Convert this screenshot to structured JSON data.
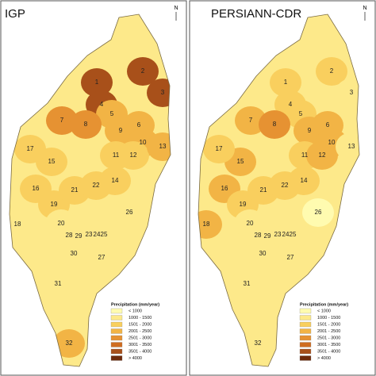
{
  "panels": [
    {
      "title": "IGP",
      "north": "N",
      "regions": [
        {
          "label": "1",
          "color": "#a8501a"
        },
        {
          "label": "2",
          "color": "#a8501a"
        },
        {
          "label": "3",
          "color": "#a8501a"
        },
        {
          "label": "4",
          "color": "#a8501a"
        },
        {
          "label": "5",
          "color": "#f2b445"
        },
        {
          "label": "6",
          "color": "#f2b445"
        },
        {
          "label": "7",
          "color": "#e69232"
        },
        {
          "label": "8",
          "color": "#e69232"
        },
        {
          "label": "9",
          "color": "#f2b445"
        },
        {
          "label": "10",
          "color": "#f2b445"
        },
        {
          "label": "11",
          "color": "#f9cf5e"
        },
        {
          "label": "12",
          "color": "#f9cf5e"
        },
        {
          "label": "13",
          "color": "#f2b445"
        },
        {
          "label": "14",
          "color": "#f9cf5e"
        },
        {
          "label": "15",
          "color": "#f9cf5e"
        },
        {
          "label": "16",
          "color": "#f9cf5e"
        },
        {
          "label": "17",
          "color": "#f9cf5e"
        },
        {
          "label": "18",
          "color": "#fde98a"
        },
        {
          "label": "19",
          "color": "#f9cf5e"
        },
        {
          "label": "20",
          "color": "#fde98a"
        },
        {
          "label": "21",
          "color": "#f9cf5e"
        },
        {
          "label": "22",
          "color": "#f9cf5e"
        },
        {
          "label": "23",
          "color": "#fde98a"
        },
        {
          "label": "24",
          "color": "#fde98a"
        },
        {
          "label": "25",
          "color": "#fde98a"
        },
        {
          "label": "26",
          "color": "#fde98a"
        },
        {
          "label": "27",
          "color": "#fde98a"
        },
        {
          "label": "28",
          "color": "#fde98a"
        },
        {
          "label": "29",
          "color": "#fde98a"
        },
        {
          "label": "30",
          "color": "#fde98a"
        },
        {
          "label": "31",
          "color": "#fde98a"
        },
        {
          "label": "32",
          "color": "#f2b445"
        }
      ]
    },
    {
      "title": "PERSIANN-CDR",
      "north": "N",
      "regions": [
        {
          "label": "1",
          "color": "#f9cf5e"
        },
        {
          "label": "2",
          "color": "#f9cf5e"
        },
        {
          "label": "3",
          "color": "#fde98a"
        },
        {
          "label": "4",
          "color": "#f9cf5e"
        },
        {
          "label": "5",
          "color": "#f9cf5e"
        },
        {
          "label": "6",
          "color": "#f2b445"
        },
        {
          "label": "7",
          "color": "#f2b445"
        },
        {
          "label": "8",
          "color": "#e69232"
        },
        {
          "label": "9",
          "color": "#f2b445"
        },
        {
          "label": "10",
          "color": "#f2b445"
        },
        {
          "label": "11",
          "color": "#f9cf5e"
        },
        {
          "label": "12",
          "color": "#f2b445"
        },
        {
          "label": "13",
          "color": "#fde98a"
        },
        {
          "label": "14",
          "color": "#f9cf5e"
        },
        {
          "label": "15",
          "color": "#f2b445"
        },
        {
          "label": "16",
          "color": "#f2b445"
        },
        {
          "label": "17",
          "color": "#f9cf5e"
        },
        {
          "label": "18",
          "color": "#f2b445"
        },
        {
          "label": "19",
          "color": "#f9cf5e"
        },
        {
          "label": "20",
          "color": "#fde98a"
        },
        {
          "label": "21",
          "color": "#f9cf5e"
        },
        {
          "label": "22",
          "color": "#f9cf5e"
        },
        {
          "label": "23",
          "color": "#fde98a"
        },
        {
          "label": "24",
          "color": "#fde98a"
        },
        {
          "label": "25",
          "color": "#fde98a"
        },
        {
          "label": "26",
          "color": "#fffbb0"
        },
        {
          "label": "27",
          "color": "#fde98a"
        },
        {
          "label": "28",
          "color": "#fde98a"
        },
        {
          "label": "29",
          "color": "#fde98a"
        },
        {
          "label": "30",
          "color": "#fde98a"
        },
        {
          "label": "31",
          "color": "#fde98a"
        },
        {
          "label": "32",
          "color": "#fde98a"
        }
      ]
    }
  ],
  "legend": {
    "title": "Precipitation (mm/year)",
    "classes": [
      {
        "label": "< 1000",
        "color": "#fffbb0"
      },
      {
        "label": "1000 - 1500",
        "color": "#fde98a"
      },
      {
        "label": "1501 - 2000",
        "color": "#f9cf5e"
      },
      {
        "label": "2001 - 2500",
        "color": "#f2b445"
      },
      {
        "label": "2501 - 3000",
        "color": "#e69232"
      },
      {
        "label": "3001 - 3500",
        "color": "#cf6d21"
      },
      {
        "label": "3501 - 4000",
        "color": "#a8501a"
      },
      {
        "label": "> 4000",
        "color": "#6e2a0b"
      }
    ]
  }
}
